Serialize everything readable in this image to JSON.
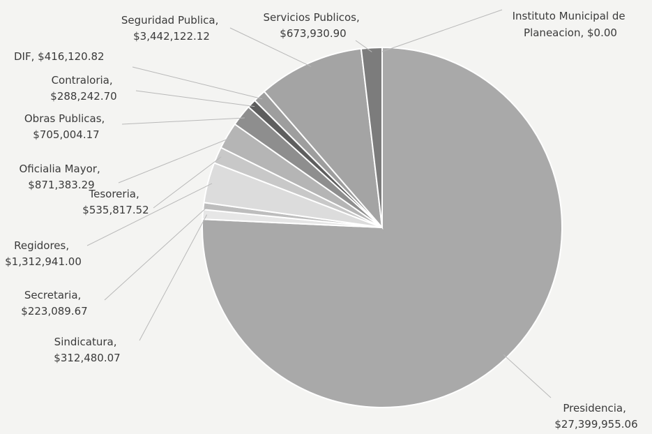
{
  "chart_data": {
    "type": "pie",
    "slices": [
      {
        "name": "Presidencia",
        "value_label": "$27,399,955.06",
        "value": 27399955.06,
        "color": "#a9a9a9"
      },
      {
        "name": "Sindicatura",
        "value_label": "$312,480.07",
        "value": 312480.07,
        "color": "#e6e6e6"
      },
      {
        "name": "Secretaria",
        "value_label": "$223,089.67",
        "value": 223089.67,
        "color": "#bdbdbd"
      },
      {
        "name": "Regidores",
        "value_label": "$1,312,941.00",
        "value": 1312941.0,
        "color": "#dcdcdc"
      },
      {
        "name": "Tesoreria",
        "value_label": "$535,817.52",
        "value": 535817.52,
        "color": "#c8c8c8"
      },
      {
        "name": "Oficialia Mayor",
        "value_label": "$871,383.29",
        "value": 871383.29,
        "color": "#b5b5b5"
      },
      {
        "name": "Obras Publicas",
        "value_label": "$705,004.17",
        "value": 705004.17,
        "color": "#8e8e8e"
      },
      {
        "name": "Contraloria",
        "value_label": "$288,242.70",
        "value": 288242.7,
        "color": "#5e5e5e"
      },
      {
        "name": "DIF",
        "value_label": "$416,120.82",
        "value": 416120.82,
        "color": "#9e9e9e"
      },
      {
        "name": "Seguridad Publica",
        "value_label": "$3,442,122.12",
        "value": 3442122.12,
        "color": "#a4a4a4"
      },
      {
        "name": "Servicios Publicos",
        "value_label": "$673,930.90",
        "value": 673930.9,
        "color": "#7c7c7c"
      },
      {
        "name": "Instituto Municipal de Planeacion",
        "value_label": "$0.00",
        "value": 0.0,
        "color": "#a9a9a9"
      }
    ]
  }
}
